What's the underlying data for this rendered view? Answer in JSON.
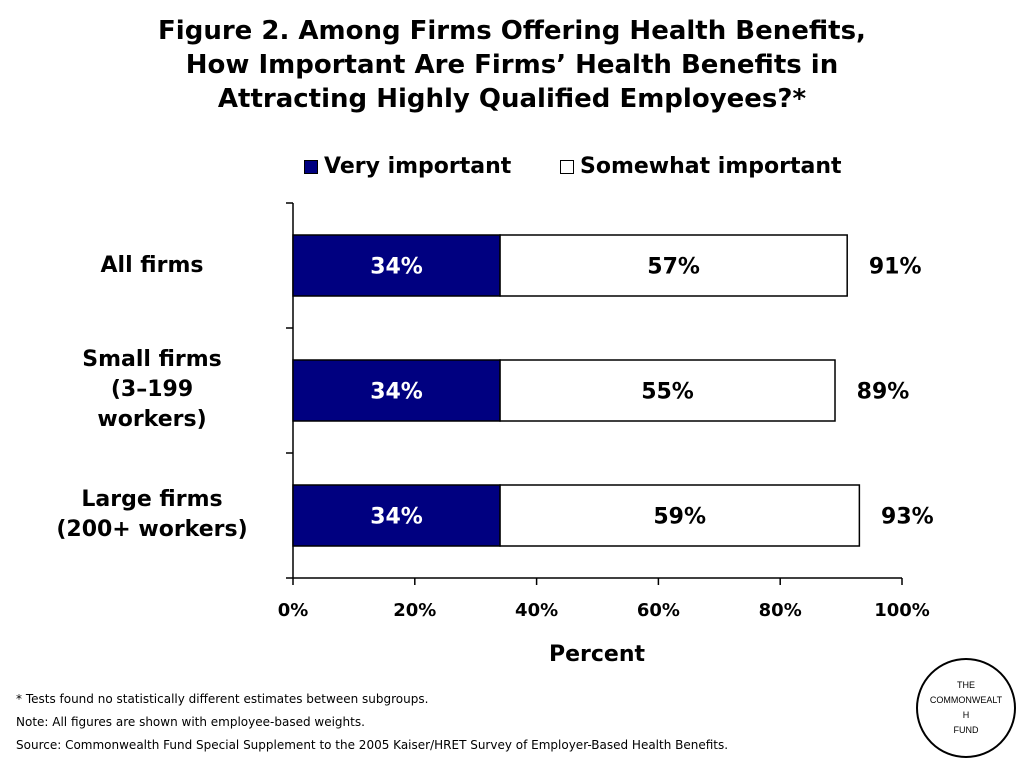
{
  "chart_data": {
    "type": "bar",
    "orientation": "horizontal",
    "stacked": true,
    "title_lines": [
      "Figure 2. Among Firms Offering Health Benefits,",
      "How Important Are Firms’ Health Benefits in",
      "Attracting Highly Qualified Employees?*"
    ],
    "categories": [
      [
        "All firms"
      ],
      [
        "Small firms",
        "(3–199",
        "workers)"
      ],
      [
        "Large firms",
        "(200+ workers)"
      ]
    ],
    "series": [
      {
        "name": "Very important",
        "values": [
          34,
          34,
          34
        ],
        "labels": [
          "34%",
          "34%",
          "34%"
        ],
        "color": "#000080"
      },
      {
        "name": "Somewhat important",
        "values": [
          57,
          55,
          59
        ],
        "labels": [
          "57%",
          "55%",
          "59%"
        ],
        "color": "#ffffff"
      }
    ],
    "totals": [
      91,
      89,
      93
    ],
    "total_labels": [
      "91%",
      "89%",
      "93%"
    ],
    "xlabel": "Percent",
    "xlim": [
      0,
      100
    ],
    "xticks": [
      0,
      20,
      40,
      60,
      80,
      100
    ],
    "xtick_labels": [
      "0%",
      "20%",
      "40%",
      "60%",
      "80%",
      "100%"
    ],
    "legend_position": "top",
    "grid": false
  },
  "notes": [
    "* Tests found no statistically different estimates between subgroups.",
    "Note: All figures are shown with employee-based weights.",
    "Source: Commonwealth Fund Special Supplement to the 2005 Kaiser/HRET Survey of Employer-Based Health Benefits."
  ],
  "logo_lines": [
    "THE",
    "COMMONWEALT",
    "H",
    "FUND"
  ]
}
